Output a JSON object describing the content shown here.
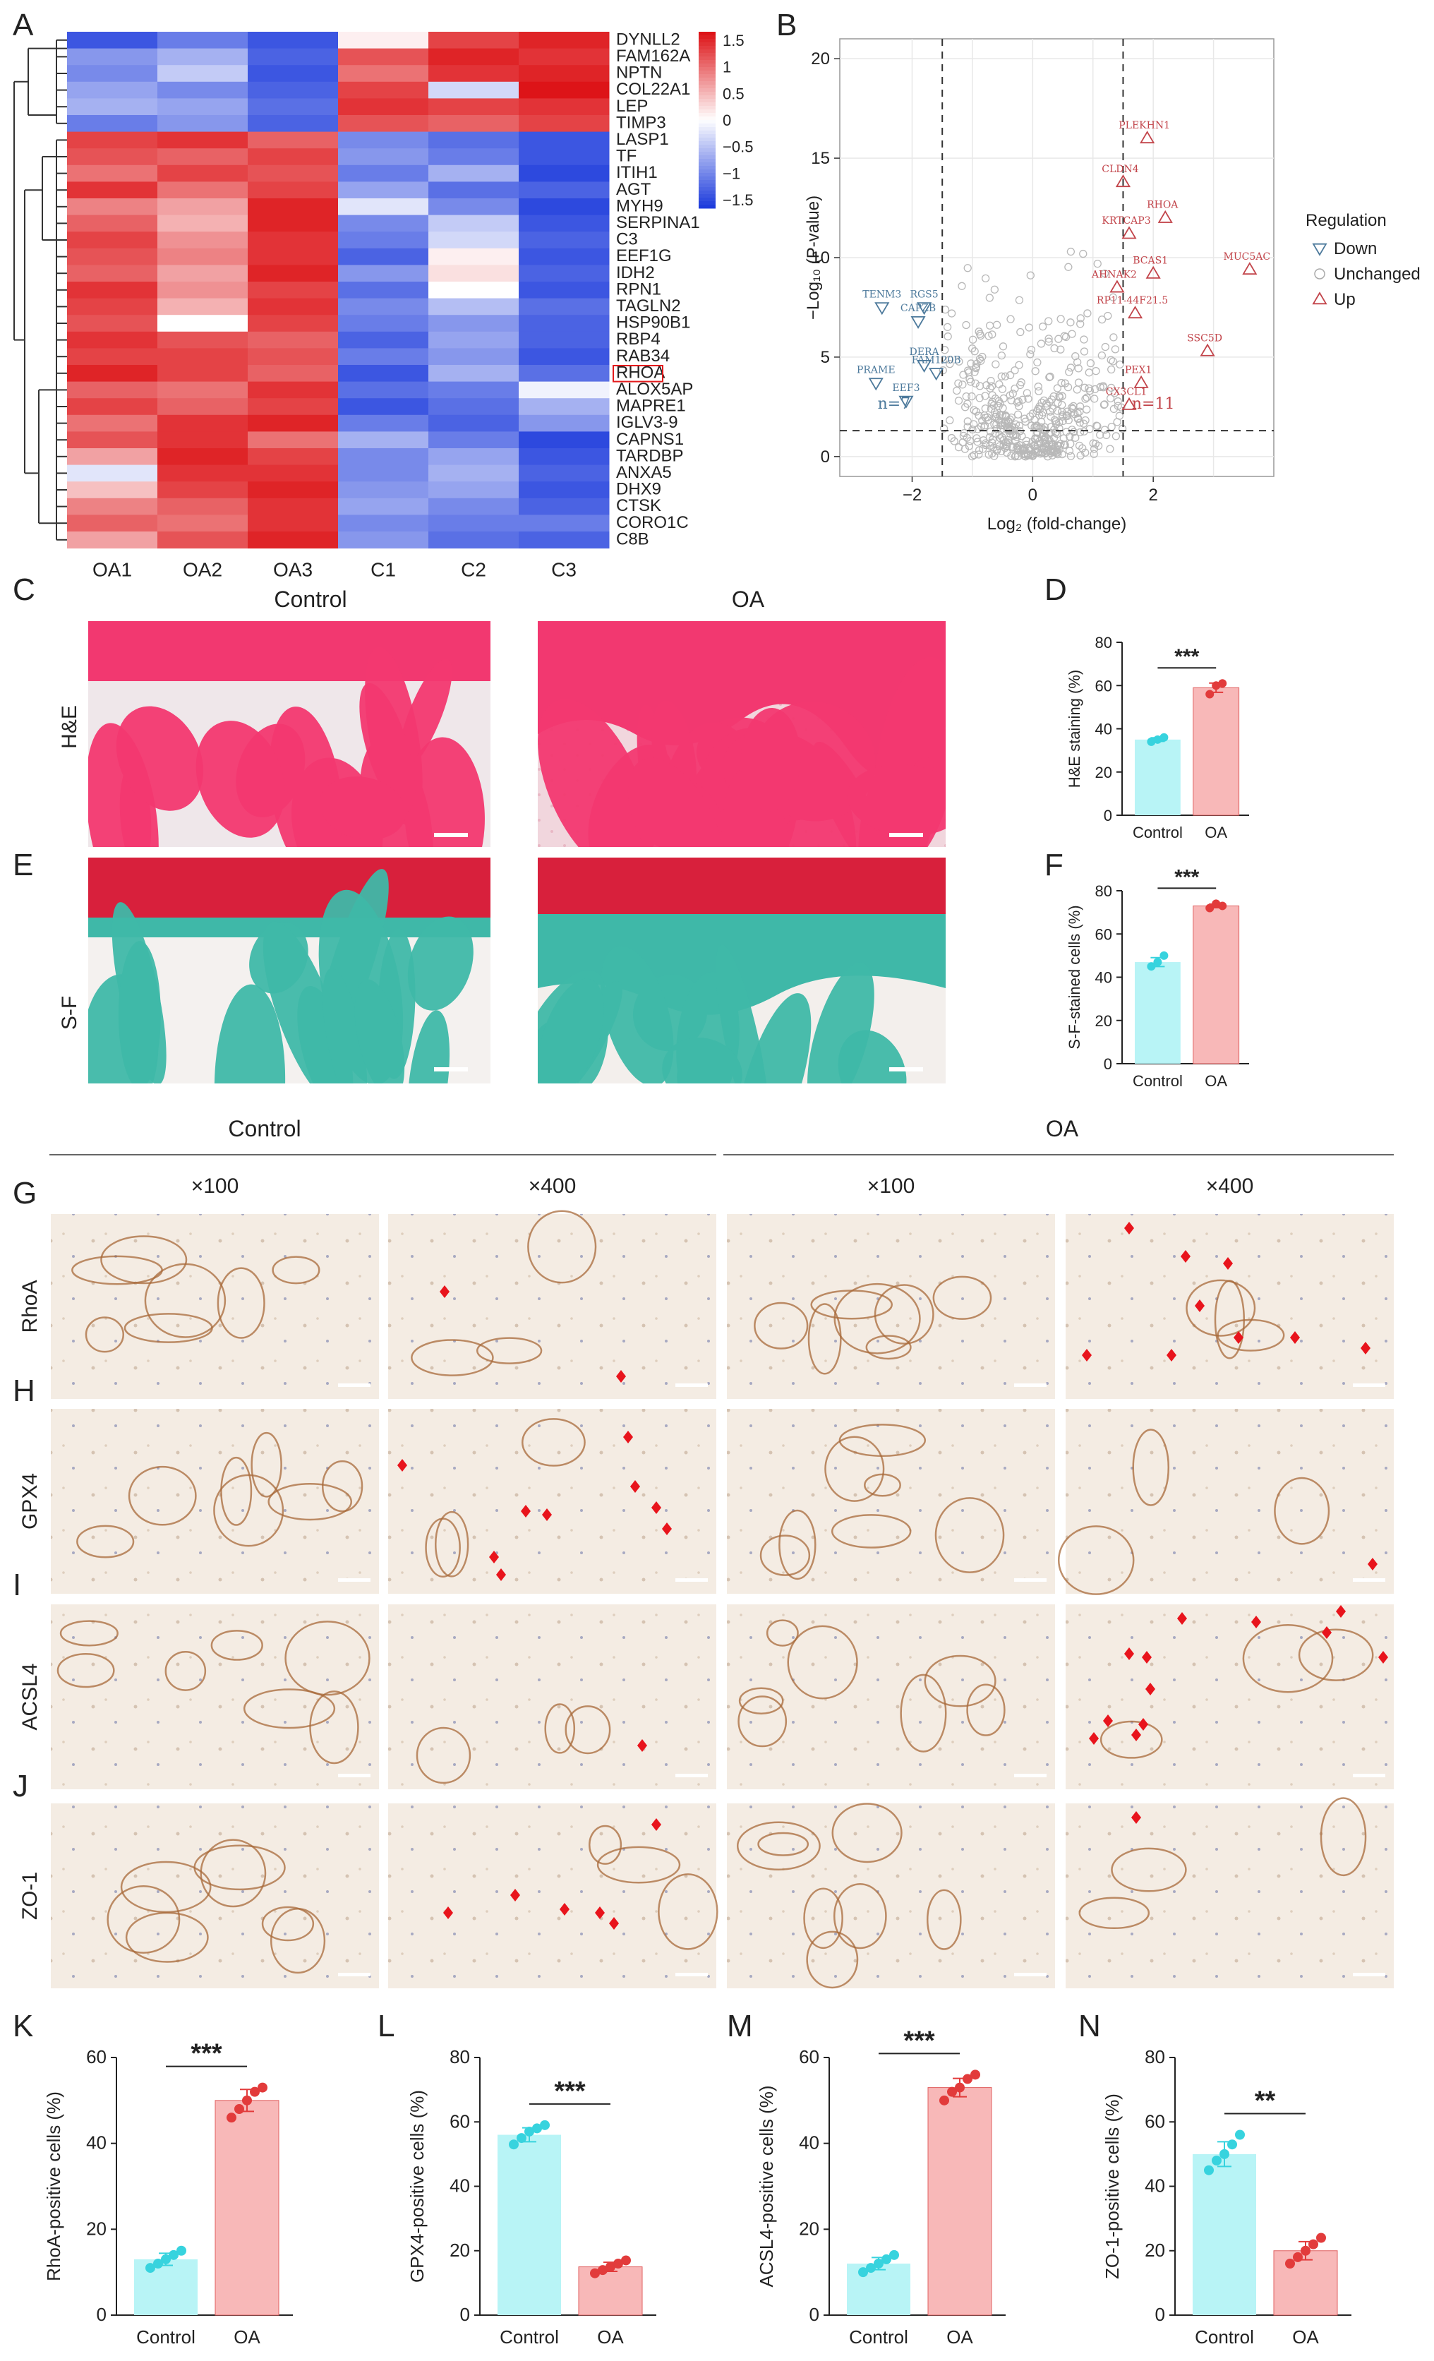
{
  "panel_letters": [
    "A",
    "B",
    "C",
    "D",
    "E",
    "F",
    "G",
    "H",
    "I",
    "J",
    "K",
    "L",
    "M",
    "N"
  ],
  "heatmap": {
    "samples": [
      "OA1",
      "OA2",
      "OA3",
      "C1",
      "C2",
      "C3"
    ],
    "genes": [
      "DYNLL2",
      "FAM162A",
      "NPTN",
      "COL22A1",
      "LEP",
      "TIMP3",
      "LASP1",
      "TF",
      "ITIH1",
      "AGT",
      "MYH9",
      "SERPINA1",
      "C3",
      "EEF1G",
      "IDH2",
      "RPN1",
      "TAGLN2",
      "HSP90B1",
      "RBP4",
      "RAB34",
      "RHOA",
      "ALOX5AP",
      "MAPRE1",
      "IGLV3-9",
      "CAPNS1",
      "TARDBP",
      "ANXA5",
      "DHX9",
      "CTSK",
      "CORO1C",
      "C8B"
    ],
    "highlight_gene": "RHOA",
    "colorbar_ticks": [
      "1.5",
      "1",
      "0.5",
      "0",
      "−0.5",
      "−1",
      "−1.5"
    ],
    "values": [
      [
        -1.3,
        -1.0,
        -1.3,
        0.1,
        1.2,
        1.4
      ],
      [
        -0.8,
        -0.6,
        -1.2,
        1.1,
        1.4,
        1.3
      ],
      [
        -0.9,
        -0.4,
        -1.3,
        0.9,
        1.3,
        1.4
      ],
      [
        -0.7,
        -0.9,
        -1.2,
        1.2,
        -0.3,
        1.5
      ],
      [
        -0.6,
        -0.7,
        -1.1,
        1.3,
        1.2,
        1.3
      ],
      [
        -1.0,
        -0.8,
        -1.2,
        1.1,
        1.0,
        1.2
      ],
      [
        1.2,
        1.3,
        1.0,
        -0.9,
        -1.1,
        -1.3
      ],
      [
        1.1,
        1.0,
        1.2,
        -0.8,
        -1.0,
        -1.3
      ],
      [
        0.9,
        1.2,
        1.1,
        -1.0,
        -0.6,
        -1.4
      ],
      [
        1.3,
        0.9,
        1.2,
        -0.7,
        -1.1,
        -1.2
      ],
      [
        0.8,
        0.6,
        1.4,
        -0.2,
        -0.9,
        -1.4
      ],
      [
        1.0,
        0.5,
        1.4,
        -0.9,
        -0.4,
        -1.3
      ],
      [
        1.2,
        0.7,
        1.3,
        -1.0,
        -0.3,
        -1.2
      ],
      [
        1.1,
        0.8,
        1.3,
        -1.2,
        0.1,
        -1.3
      ],
      [
        1.0,
        0.6,
        1.4,
        -0.8,
        0.2,
        -1.2
      ],
      [
        1.3,
        0.7,
        1.2,
        -1.1,
        0.0,
        -1.3
      ],
      [
        1.2,
        0.5,
        1.3,
        -0.9,
        -0.5,
        -1.1
      ],
      [
        1.1,
        0.0,
        1.2,
        -1.0,
        -0.8,
        -1.2
      ],
      [
        1.3,
        1.1,
        1.0,
        -1.2,
        -0.7,
        -1.2
      ],
      [
        1.2,
        1.2,
        1.1,
        -1.0,
        -0.8,
        -1.3
      ],
      [
        1.4,
        1.2,
        1.0,
        -1.3,
        -0.6,
        -1.1
      ],
      [
        1.0,
        0.9,
        1.3,
        -1.1,
        -1.0,
        -0.1
      ],
      [
        1.2,
        1.0,
        1.2,
        -1.3,
        -1.1,
        -0.6
      ],
      [
        0.9,
        1.3,
        1.4,
        -1.0,
        -1.2,
        -0.8
      ],
      [
        1.1,
        1.3,
        0.9,
        -0.6,
        -1.0,
        -1.4
      ],
      [
        0.6,
        1.4,
        1.2,
        -0.9,
        -0.7,
        -1.3
      ],
      [
        -0.2,
        1.3,
        1.3,
        -0.9,
        -0.6,
        -1.2
      ],
      [
        0.4,
        1.2,
        1.4,
        -0.8,
        -0.7,
        -1.3
      ],
      [
        0.8,
        1.0,
        1.3,
        -0.7,
        -0.9,
        -1.2
      ],
      [
        1.0,
        0.9,
        1.3,
        -0.9,
        -1.0,
        -1.0
      ],
      [
        0.6,
        1.1,
        1.4,
        -0.8,
        -1.1,
        -1.2
      ]
    ]
  },
  "volcano": {
    "ylabel": "−Log₁₀ (P-value)",
    "xlabel": "Log₂ (fold-change)",
    "x_ticks": [
      "−2",
      "0",
      "2"
    ],
    "y_ticks": [
      "0",
      "5",
      "10",
      "15",
      "20"
    ],
    "legend_title": "Regulation",
    "legend": [
      "Down",
      "Unchanged",
      "Up"
    ],
    "n_down_label": "n=7",
    "n_up_label": "n=11",
    "up_genes": [
      {
        "name": "PLEKHN1",
        "x": 1.9,
        "y": 16.0
      },
      {
        "name": "CLDN4",
        "x": 1.5,
        "y": 13.8
      },
      {
        "name": "RHOA",
        "x": 2.2,
        "y": 12.0
      },
      {
        "name": "KRTCAP3",
        "x": 1.6,
        "y": 11.2
      },
      {
        "name": "BCAS1",
        "x": 2.0,
        "y": 9.2
      },
      {
        "name": "MUC5AC",
        "x": 3.6,
        "y": 9.4
      },
      {
        "name": "AHNAK2",
        "x": 1.4,
        "y": 8.5
      },
      {
        "name": "RP11-44F21.5",
        "x": 1.7,
        "y": 7.2
      },
      {
        "name": "SSC5D",
        "x": 2.9,
        "y": 5.3
      },
      {
        "name": "PEX1",
        "x": 1.8,
        "y": 3.7
      },
      {
        "name": "CX3CL1",
        "x": 1.6,
        "y": 2.6
      }
    ],
    "down_genes": [
      {
        "name": "TENM3",
        "x": -2.5,
        "y": 7.5
      },
      {
        "name": "RGS5",
        "x": -1.8,
        "y": 7.5
      },
      {
        "name": "CAPZB",
        "x": -1.9,
        "y": 6.8
      },
      {
        "name": "PRAME",
        "x": -2.6,
        "y": 3.7
      },
      {
        "name": "DERA",
        "x": -1.8,
        "y": 4.6
      },
      {
        "name": "FAM120B",
        "x": -1.6,
        "y": 4.2
      },
      {
        "name": "EEF3",
        "x": -2.1,
        "y": 2.8
      }
    ]
  },
  "histology": {
    "col_control": "Control",
    "col_oa": "OA",
    "row_he": "H&E",
    "row_sf": "S-F"
  },
  "ihc": {
    "group_control": "Control",
    "group_oa": "OA",
    "mag": [
      "×100",
      "×400",
      "×100",
      "×400"
    ],
    "rows": [
      "RhoA",
      "GPX4",
      "ACSL4",
      "ZO-1"
    ]
  },
  "bars_small": [
    {
      "letter": "D",
      "ylabel": "H&E staining (%)",
      "yticks": [
        "0",
        "20",
        "40",
        "60",
        "80"
      ],
      "ymax": 80,
      "control": 35,
      "oa": 59,
      "sig": "***",
      "categories": [
        "Control",
        "OA"
      ],
      "control_pts": [
        34,
        35,
        36
      ],
      "oa_pts": [
        56,
        60,
        61
      ]
    },
    {
      "letter": "F",
      "ylabel": "S-F-stained cells (%)",
      "yticks": [
        "0",
        "20",
        "40",
        "60",
        "80"
      ],
      "ymax": 80,
      "control": 47,
      "oa": 73,
      "sig": "***",
      "categories": [
        "Control",
        "OA"
      ],
      "control_pts": [
        45,
        47,
        50
      ],
      "oa_pts": [
        72,
        74,
        73
      ]
    }
  ],
  "bars_bottom": [
    {
      "letter": "K",
      "ylabel": "RhoA-positive cells (%)",
      "yticks": [
        "0",
        "20",
        "40",
        "60"
      ],
      "ymax": 60,
      "control": 13,
      "oa": 50,
      "sig": "***",
      "categories": [
        "Control",
        "OA"
      ],
      "control_pts": [
        11,
        12,
        13,
        14,
        15
      ],
      "oa_pts": [
        46,
        48,
        50,
        52,
        53
      ]
    },
    {
      "letter": "L",
      "ylabel": "GPX4-positive cells (%)",
      "yticks": [
        "0",
        "20",
        "40",
        "60",
        "80"
      ],
      "ymax": 80,
      "control": 56,
      "oa": 15,
      "sig": "***",
      "categories": [
        "Control",
        "OA"
      ],
      "control_pts": [
        53,
        55,
        57,
        58,
        59
      ],
      "oa_pts": [
        13,
        14,
        15,
        16,
        17
      ]
    },
    {
      "letter": "M",
      "ylabel": "ACSL4-positive cells (%)",
      "yticks": [
        "0",
        "20",
        "40",
        "60"
      ],
      "ymax": 60,
      "control": 12,
      "oa": 53,
      "sig": "***",
      "categories": [
        "Control",
        "OA"
      ],
      "control_pts": [
        10,
        11,
        12,
        13,
        14
      ],
      "oa_pts": [
        50,
        52,
        53,
        55,
        56
      ]
    },
    {
      "letter": "N",
      "ylabel": "ZO-1-positive cells (%)",
      "yticks": [
        "0",
        "20",
        "40",
        "60",
        "80"
      ],
      "ymax": 80,
      "control": 50,
      "oa": 20,
      "sig": "**",
      "categories": [
        "Control",
        "OA"
      ],
      "control_pts": [
        45,
        48,
        50,
        53,
        56
      ],
      "oa_pts": [
        16,
        18,
        20,
        22,
        24
      ]
    }
  ],
  "colors": {
    "control_bar": "#b8f4f6",
    "control_dot": "#37d3de",
    "oa_bar": "#f8b8b8",
    "oa_dot": "#e23b3b",
    "he_pink": "#f23870",
    "sf_teal": "#3fb8a8",
    "sf_red": "#d8203c",
    "down": "#4d7a9c",
    "up": "#c2444a",
    "arrow": "#e8141c"
  }
}
